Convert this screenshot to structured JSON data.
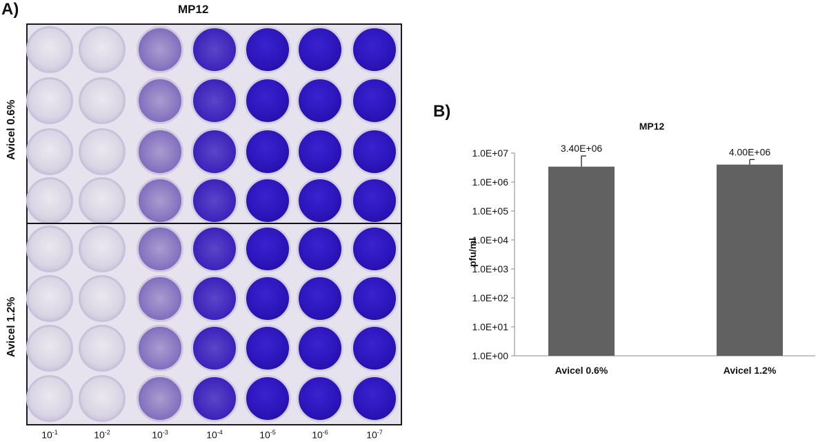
{
  "panel_a": {
    "label": "A)",
    "title": "MP12",
    "row_group_labels": [
      "Avicel 0.6%",
      "Avicel 1.2%"
    ],
    "dilutions": [
      {
        "base": "10",
        "exp": "-1"
      },
      {
        "base": "10",
        "exp": "-2"
      },
      {
        "base": "10",
        "exp": "-3"
      },
      {
        "base": "10",
        "exp": "-4"
      },
      {
        "base": "10",
        "exp": "-5"
      },
      {
        "base": "10",
        "exp": "-6"
      },
      {
        "base": "10",
        "exp": "-7"
      }
    ]
  },
  "chart_data": {
    "panel_label": "B)",
    "type": "bar",
    "title": "MP12",
    "ylabel": "pfu/ml",
    "xlabel": "",
    "yscale": "log",
    "ylim": [
      1,
      10000000
    ],
    "yticks": [
      "1.0E+00",
      "1.0E+01",
      "1.0E+02",
      "1.0E+03",
      "1.0E+04",
      "1.0E+05",
      "1.0E+06",
      "1.0E+07"
    ],
    "categories": [
      "Avicel 0.6%",
      "Avicel 1.2%"
    ],
    "values": [
      3400000,
      4000000
    ],
    "data_labels": [
      "3.40E+06",
      "4.00E+06"
    ],
    "error_upper": [
      8000000,
      6000000
    ],
    "bar_color": "#616161",
    "grid": false
  },
  "colors": {
    "stain": "#2a14b8",
    "well_clear": "#d9d5e4"
  }
}
